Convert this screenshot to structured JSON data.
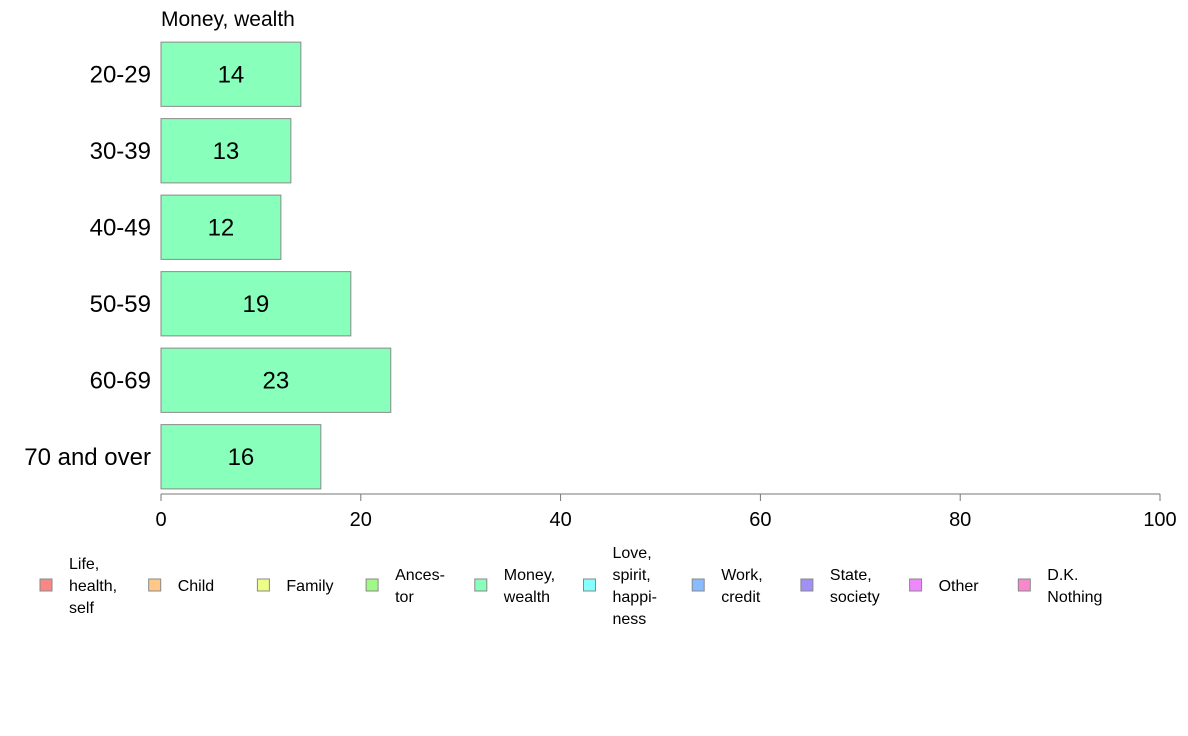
{
  "chart_data": {
    "type": "bar",
    "orientation": "horizontal",
    "title": "Money, wealth",
    "categories": [
      "20-29",
      "30-39",
      "40-49",
      "50-59",
      "60-69",
      "70 and over"
    ],
    "values": [
      14,
      13,
      12,
      19,
      23,
      16
    ],
    "value_labels": [
      "14",
      "13",
      "12",
      "19",
      "23",
      "16"
    ],
    "xlim": [
      0,
      100
    ],
    "xticks": [
      0,
      20,
      40,
      60,
      80,
      100
    ],
    "xtick_labels": [
      "0",
      "20",
      "40",
      "60",
      "80",
      "100"
    ],
    "grid": false,
    "legend_position": "bottom",
    "bar_color": "#88FFBB",
    "legend": [
      {
        "label": "Life,\nhealth,\nself",
        "color": "#F88888"
      },
      {
        "label": "Child",
        "color": "#FFC888"
      },
      {
        "label": "Family",
        "color": "#EEFF88"
      },
      {
        "label": "Ances-\ntor",
        "color": "#A0F888"
      },
      {
        "label": "Money,\nwealth",
        "color": "#88FFBB"
      },
      {
        "label": "Love,\nspirit,\nhappi-\nness",
        "color": "#88FFFF"
      },
      {
        "label": "Work,\ncredit",
        "color": "#88BBFF"
      },
      {
        "label": "State,\nsociety",
        "color": "#A090F8"
      },
      {
        "label": "Other",
        "color": "#EE88FF"
      },
      {
        "label": "D.K.\nNothing",
        "color": "#F888CC"
      }
    ]
  }
}
